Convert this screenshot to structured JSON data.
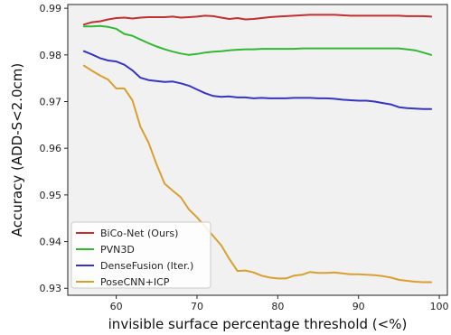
{
  "chart_data": {
    "type": "line",
    "xlabel": "invisible surface percentage threshold (<%)",
    "ylabel": "Accuracy (ADD-S<2.0cm)",
    "xlim": [
      54,
      101
    ],
    "ylim": [
      0.9285,
      0.9908
    ],
    "xticks": [
      60,
      70,
      80,
      90,
      100
    ],
    "yticks": [
      0.93,
      0.94,
      0.95,
      0.96,
      0.97,
      0.98,
      0.99
    ],
    "ytick_labels": [
      "0.93",
      "0.94",
      "0.95",
      "0.96",
      "0.97",
      "0.98",
      "0.99"
    ],
    "grid": false,
    "background": "#f1f1f1",
    "legend_position": "lower-left",
    "x": [
      56,
      57,
      58,
      59,
      60,
      61,
      62,
      63,
      64,
      65,
      66,
      67,
      68,
      69,
      70,
      71,
      72,
      73,
      74,
      75,
      76,
      77,
      78,
      79,
      80,
      81,
      82,
      83,
      84,
      85,
      86,
      87,
      88,
      89,
      90,
      91,
      92,
      93,
      94,
      95,
      96,
      97,
      98,
      99
    ],
    "series": [
      {
        "name": "BiCo-Net (Ours)",
        "color": "#c03030",
        "values": [
          0.9865,
          0.987,
          0.9872,
          0.9876,
          0.9879,
          0.988,
          0.9878,
          0.988,
          0.9881,
          0.9881,
          0.9881,
          0.9882,
          0.988,
          0.9881,
          0.9882,
          0.9884,
          0.9883,
          0.988,
          0.9877,
          0.9879,
          0.9876,
          0.9877,
          0.9879,
          0.9881,
          0.9882,
          0.9883,
          0.9884,
          0.9885,
          0.9886,
          0.9886,
          0.9886,
          0.9886,
          0.9885,
          0.9884,
          0.9884,
          0.9884,
          0.9884,
          0.9884,
          0.9884,
          0.9884,
          0.9883,
          0.9883,
          0.9883,
          0.9882
        ]
      },
      {
        "name": "PVN3D",
        "color": "#33b833",
        "values": [
          0.9861,
          0.9861,
          0.9862,
          0.986,
          0.9856,
          0.9845,
          0.9841,
          0.9833,
          0.9825,
          0.9818,
          0.9812,
          0.9807,
          0.9803,
          0.98,
          0.9802,
          0.9805,
          0.9807,
          0.9808,
          0.981,
          0.9811,
          0.9812,
          0.9812,
          0.9813,
          0.9813,
          0.9813,
          0.9813,
          0.9813,
          0.9814,
          0.9814,
          0.9814,
          0.9814,
          0.9814,
          0.9814,
          0.9814,
          0.9814,
          0.9814,
          0.9814,
          0.9814,
          0.9814,
          0.9814,
          0.9812,
          0.981,
          0.9805,
          0.98
        ]
      },
      {
        "name": "DenseFusion (Iter.)",
        "color": "#3535c0",
        "values": [
          0.9808,
          0.9801,
          0.9793,
          0.9788,
          0.9786,
          0.9779,
          0.9767,
          0.9751,
          0.9746,
          0.9744,
          0.9742,
          0.9743,
          0.9739,
          0.9734,
          0.9726,
          0.9718,
          0.9712,
          0.971,
          0.9711,
          0.9709,
          0.9709,
          0.9707,
          0.9708,
          0.9707,
          0.9707,
          0.9707,
          0.9708,
          0.9708,
          0.9708,
          0.9707,
          0.9707,
          0.9706,
          0.9704,
          0.9703,
          0.9702,
          0.9702,
          0.97,
          0.9697,
          0.9694,
          0.9688,
          0.9686,
          0.9685,
          0.9684,
          0.9684
        ]
      },
      {
        "name": "PoseCNN+ICP",
        "color": "#d9a030",
        "values": [
          0.9777,
          0.9766,
          0.9756,
          0.9747,
          0.9728,
          0.9728,
          0.9703,
          0.9646,
          0.9612,
          0.9565,
          0.9524,
          0.9509,
          0.9495,
          0.9469,
          0.9452,
          0.9432,
          0.9412,
          0.9392,
          0.9363,
          0.9337,
          0.9338,
          0.9334,
          0.9327,
          0.9323,
          0.9321,
          0.9321,
          0.9327,
          0.9329,
          0.9335,
          0.9333,
          0.9333,
          0.9334,
          0.9332,
          0.933,
          0.933,
          0.9329,
          0.9328,
          0.9326,
          0.9323,
          0.9318,
          0.9316,
          0.9314,
          0.9313,
          0.9313
        ]
      }
    ]
  }
}
